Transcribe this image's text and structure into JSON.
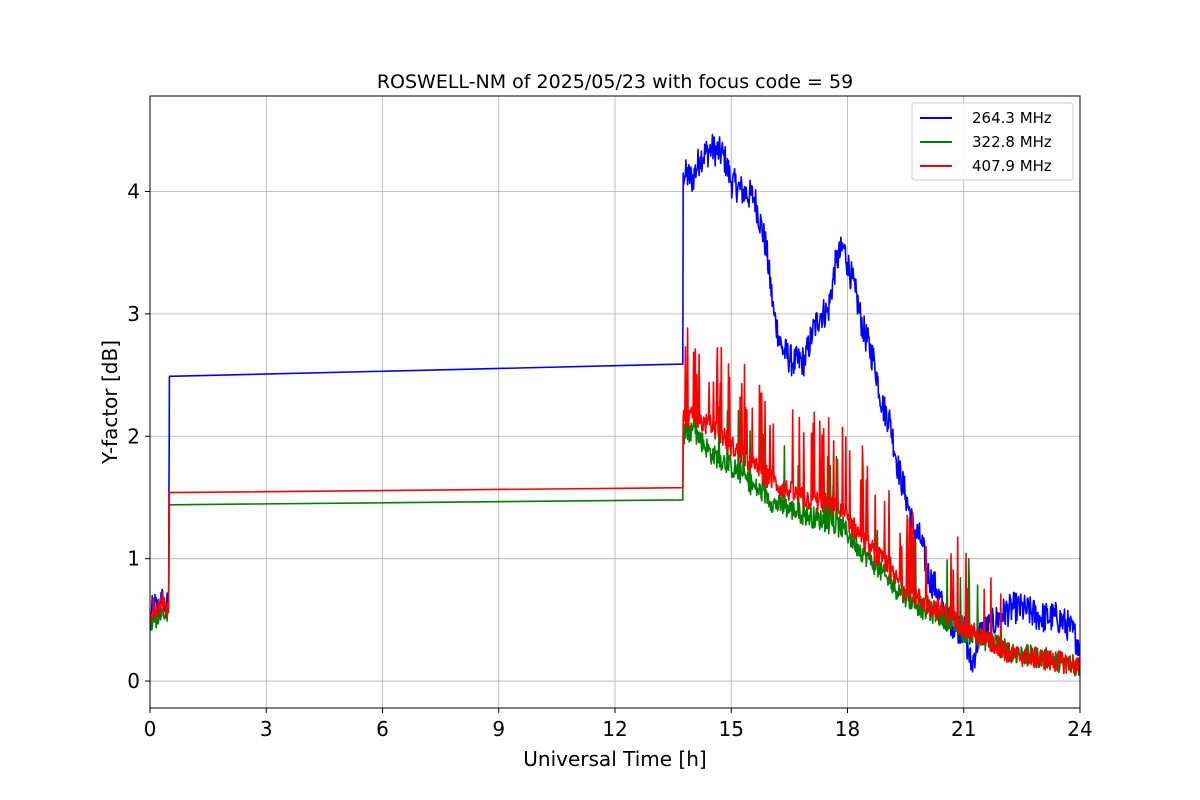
{
  "chart_data": {
    "type": "line",
    "title": "ROSWELL-NM of 2025/05/23 with focus code = 59",
    "xlabel": "Universal Time [h]",
    "ylabel": "Y-factor [dB]",
    "xlim": [
      0,
      24
    ],
    "ylim": [
      -0.22,
      4.78
    ],
    "xticks": [
      0,
      3,
      6,
      9,
      12,
      15,
      18,
      21,
      24
    ],
    "xtick_labels": [
      "0",
      "3",
      "6",
      "9",
      "12",
      "15",
      "18",
      "21",
      "24"
    ],
    "yticks": [
      0,
      1,
      2,
      3,
      4
    ],
    "ytick_labels": [
      "0",
      "1",
      "2",
      "3",
      "4"
    ],
    "grid": true,
    "legend_position": "top-right",
    "series": [
      {
        "name": "264.3 MHz",
        "color": "#0000ff",
        "points": [
          [
            0.0,
            0.5
          ],
          [
            0.1,
            0.62
          ],
          [
            0.2,
            0.58
          ],
          [
            0.3,
            0.66
          ],
          [
            0.4,
            0.6
          ],
          [
            0.48,
            0.62
          ],
          [
            0.5,
            2.49
          ],
          [
            13.75,
            2.59
          ],
          [
            13.76,
            4.15
          ],
          [
            14.0,
            4.1
          ],
          [
            14.2,
            4.28
          ],
          [
            14.5,
            4.35
          ],
          [
            14.8,
            4.3
          ],
          [
            15.0,
            4.08
          ],
          [
            15.3,
            4.0
          ],
          [
            15.6,
            3.95
          ],
          [
            15.9,
            3.55
          ],
          [
            16.1,
            3.0
          ],
          [
            16.3,
            2.72
          ],
          [
            16.6,
            2.6
          ],
          [
            16.9,
            2.62
          ],
          [
            17.1,
            2.85
          ],
          [
            17.3,
            3.0
          ],
          [
            17.5,
            3.02
          ],
          [
            17.7,
            3.42
          ],
          [
            17.9,
            3.55
          ],
          [
            18.0,
            3.42
          ],
          [
            18.2,
            3.18
          ],
          [
            18.4,
            2.88
          ],
          [
            18.7,
            2.6
          ],
          [
            18.9,
            2.25
          ],
          [
            19.1,
            2.12
          ],
          [
            19.3,
            1.75
          ],
          [
            19.5,
            1.52
          ],
          [
            19.7,
            1.25
          ],
          [
            19.9,
            1.15
          ],
          [
            20.1,
            0.85
          ],
          [
            20.3,
            0.75
          ],
          [
            20.5,
            0.55
          ],
          [
            20.8,
            0.45
          ],
          [
            21.0,
            0.42
          ],
          [
            21.2,
            0.12
          ],
          [
            21.4,
            0.38
          ],
          [
            21.7,
            0.45
          ],
          [
            22.0,
            0.55
          ],
          [
            22.3,
            0.6
          ],
          [
            22.6,
            0.58
          ],
          [
            23.0,
            0.52
          ],
          [
            23.4,
            0.52
          ],
          [
            23.7,
            0.45
          ],
          [
            24.0,
            0.3
          ]
        ]
      },
      {
        "name": "322.8 MHz",
        "color": "#008000",
        "points": [
          [
            0.0,
            0.42
          ],
          [
            0.1,
            0.55
          ],
          [
            0.2,
            0.5
          ],
          [
            0.3,
            0.58
          ],
          [
            0.4,
            0.54
          ],
          [
            0.48,
            0.56
          ],
          [
            0.5,
            1.44
          ],
          [
            13.75,
            1.48
          ],
          [
            13.76,
            2.02
          ],
          [
            14.0,
            2.05
          ],
          [
            14.2,
            1.98
          ],
          [
            14.5,
            1.85
          ],
          [
            14.8,
            1.8
          ],
          [
            15.0,
            1.75
          ],
          [
            15.3,
            1.68
          ],
          [
            15.6,
            1.58
          ],
          [
            15.9,
            1.52
          ],
          [
            16.1,
            1.45
          ],
          [
            16.4,
            1.42
          ],
          [
            16.7,
            1.38
          ],
          [
            17.0,
            1.35
          ],
          [
            17.3,
            1.32
          ],
          [
            17.6,
            1.28
          ],
          [
            17.9,
            1.25
          ],
          [
            18.2,
            1.12
          ],
          [
            18.5,
            1.02
          ],
          [
            18.8,
            0.92
          ],
          [
            19.1,
            0.8
          ],
          [
            19.4,
            0.72
          ],
          [
            19.7,
            0.65
          ],
          [
            20.0,
            0.58
          ],
          [
            20.3,
            0.55
          ],
          [
            20.6,
            0.5
          ],
          [
            20.9,
            0.42
          ],
          [
            21.2,
            0.38
          ],
          [
            21.5,
            0.34
          ],
          [
            21.8,
            0.32
          ],
          [
            22.1,
            0.25
          ],
          [
            22.4,
            0.22
          ],
          [
            22.8,
            0.2
          ],
          [
            23.2,
            0.18
          ],
          [
            23.6,
            0.15
          ],
          [
            24.0,
            0.12
          ]
        ]
      },
      {
        "name": "407.9 MHz",
        "color": "#ff0000",
        "points": [
          [
            0.0,
            0.52
          ],
          [
            0.1,
            0.62
          ],
          [
            0.2,
            0.58
          ],
          [
            0.3,
            0.68
          ],
          [
            0.4,
            0.6
          ],
          [
            0.48,
            0.62
          ],
          [
            0.5,
            1.54
          ],
          [
            13.75,
            1.58
          ],
          [
            13.76,
            2.15
          ],
          [
            14.0,
            2.15
          ],
          [
            14.2,
            2.12
          ],
          [
            14.5,
            2.08
          ],
          [
            14.8,
            2.0
          ],
          [
            15.0,
            1.92
          ],
          [
            15.3,
            1.85
          ],
          [
            15.6,
            1.75
          ],
          [
            15.9,
            1.68
          ],
          [
            16.2,
            1.6
          ],
          [
            16.5,
            1.55
          ],
          [
            16.8,
            1.5
          ],
          [
            17.1,
            1.48
          ],
          [
            17.4,
            1.45
          ],
          [
            17.7,
            1.42
          ],
          [
            18.0,
            1.32
          ],
          [
            18.3,
            1.2
          ],
          [
            18.6,
            1.08
          ],
          [
            18.9,
            0.98
          ],
          [
            19.2,
            0.85
          ],
          [
            19.5,
            0.75
          ],
          [
            19.8,
            0.68
          ],
          [
            20.1,
            0.62
          ],
          [
            20.4,
            0.58
          ],
          [
            20.7,
            0.52
          ],
          [
            21.0,
            0.45
          ],
          [
            21.3,
            0.38
          ],
          [
            21.6,
            0.32
          ],
          [
            21.9,
            0.28
          ],
          [
            22.2,
            0.22
          ],
          [
            22.6,
            0.2
          ],
          [
            23.0,
            0.18
          ],
          [
            23.4,
            0.16
          ],
          [
            23.8,
            0.14
          ],
          [
            24.0,
            0.12
          ]
        ]
      }
    ]
  }
}
